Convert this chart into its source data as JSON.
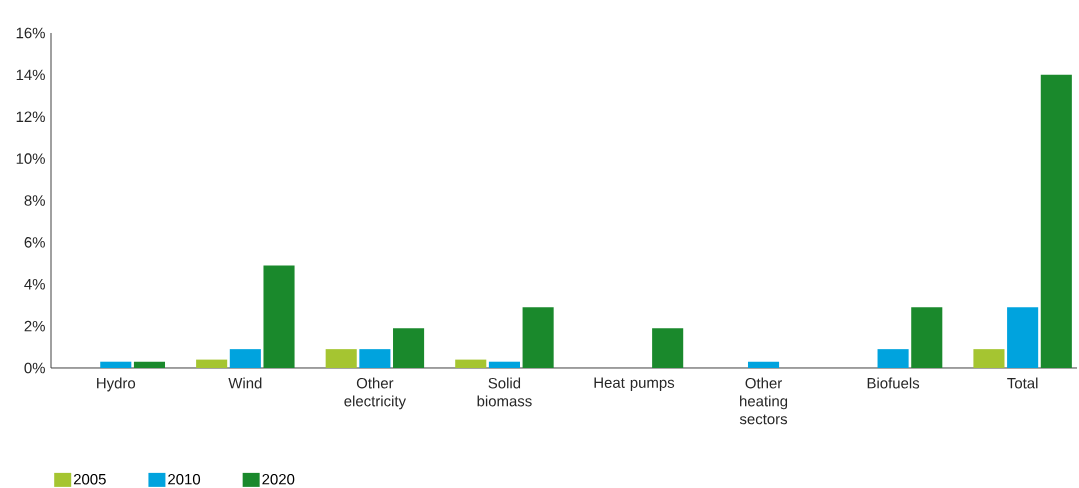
{
  "chart_data": {
    "type": "bar",
    "categories": [
      "Hydro",
      "Wind",
      "Other electricity",
      "Solid biomass",
      "Heat pumps",
      "Other heating sectors",
      "Biofuels",
      "Total"
    ],
    "series": [
      {
        "name": "2005",
        "color": "#a5c531",
        "values": [
          null,
          0.4,
          0.9,
          0.4,
          null,
          null,
          null,
          0.9
        ]
      },
      {
        "name": "2010",
        "color": "#00a3de",
        "values": [
          0.3,
          0.9,
          0.9,
          0.3,
          null,
          0.3,
          0.9,
          2.9
        ]
      },
      {
        "name": "2020",
        "color": "#1a892c",
        "values": [
          0.3,
          4.9,
          1.9,
          2.9,
          1.9,
          null,
          2.9,
          14.0
        ]
      }
    ],
    "ylim": [
      0,
      16
    ],
    "yticks": [
      {
        "value": 0,
        "label": "0%"
      },
      {
        "value": 2,
        "label": "2%"
      },
      {
        "value": 4,
        "label": "4%"
      },
      {
        "value": 6,
        "label": "6%"
      },
      {
        "value": 8,
        "label": "8%"
      },
      {
        "value": 10,
        "label": "10%"
      },
      {
        "value": 12,
        "label": "12%"
      },
      {
        "value": 14,
        "label": "14%"
      },
      {
        "value": 16,
        "label": "16%"
      }
    ],
    "legend": "bottom"
  }
}
